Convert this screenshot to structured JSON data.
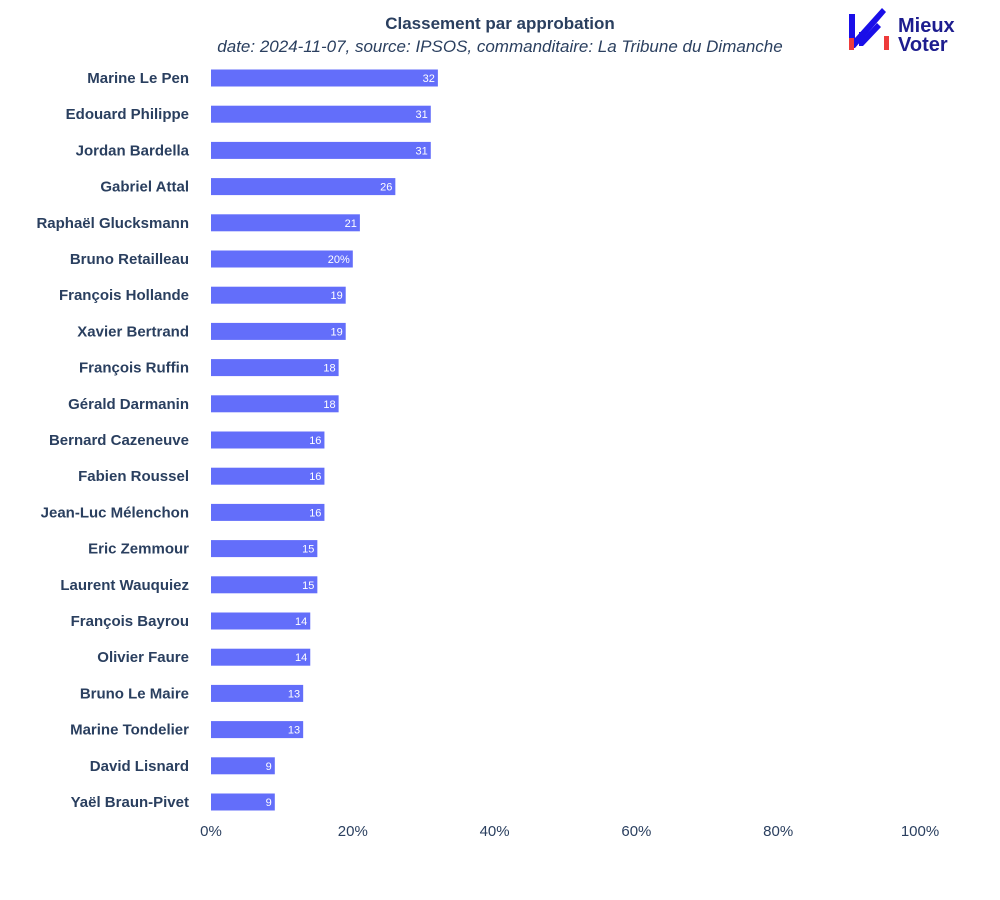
{
  "chart_data": {
    "type": "bar",
    "orientation": "horizontal",
    "title": "Classement par approbation",
    "subtitle": "date: 2024-11-07, source: IPSOS, commanditaire: La Tribune du Dimanche",
    "categories": [
      "Marine Le Pen",
      "Edouard Philippe",
      "Jordan Bardella",
      "Gabriel Attal",
      "Raphaël Glucksmann",
      "Bruno Retailleau",
      "François Hollande",
      "Xavier Bertrand",
      "François Ruffin",
      "Gérald Darmanin",
      "Bernard Cazeneuve",
      "Fabien Roussel",
      "Jean-Luc Mélenchon",
      "Eric Zemmour",
      "Laurent Wauquiez",
      "François Bayrou",
      "Olivier Faure",
      "Bruno Le Maire",
      "Marine Tondelier",
      "David Lisnard",
      "Yaël Braun-Pivet"
    ],
    "values": [
      32,
      31,
      31,
      26,
      21,
      20,
      19,
      19,
      18,
      18,
      16,
      16,
      16,
      15,
      15,
      14,
      14,
      13,
      13,
      9,
      9
    ],
    "data_labels": [
      "32",
      "31",
      "31",
      "26",
      "21",
      "20%",
      "19",
      "19",
      "18",
      "18",
      "16",
      "16",
      "16",
      "15",
      "15",
      "14",
      "14",
      "13",
      "13",
      "9",
      "9"
    ],
    "xlim": [
      0,
      100
    ],
    "x_ticks": [
      0,
      20,
      40,
      60,
      80,
      100
    ],
    "x_tick_labels": [
      "0%",
      "20%",
      "40%",
      "60%",
      "80%",
      "100%"
    ],
    "bar_color": "#636efa",
    "grid": false,
    "legend": "none"
  },
  "logo": {
    "line1": "Mieux",
    "line2": "Voter",
    "colors": {
      "check": "#1a0fe8",
      "accent": "#ee3b3b",
      "text": "#1d1d8f"
    }
  }
}
